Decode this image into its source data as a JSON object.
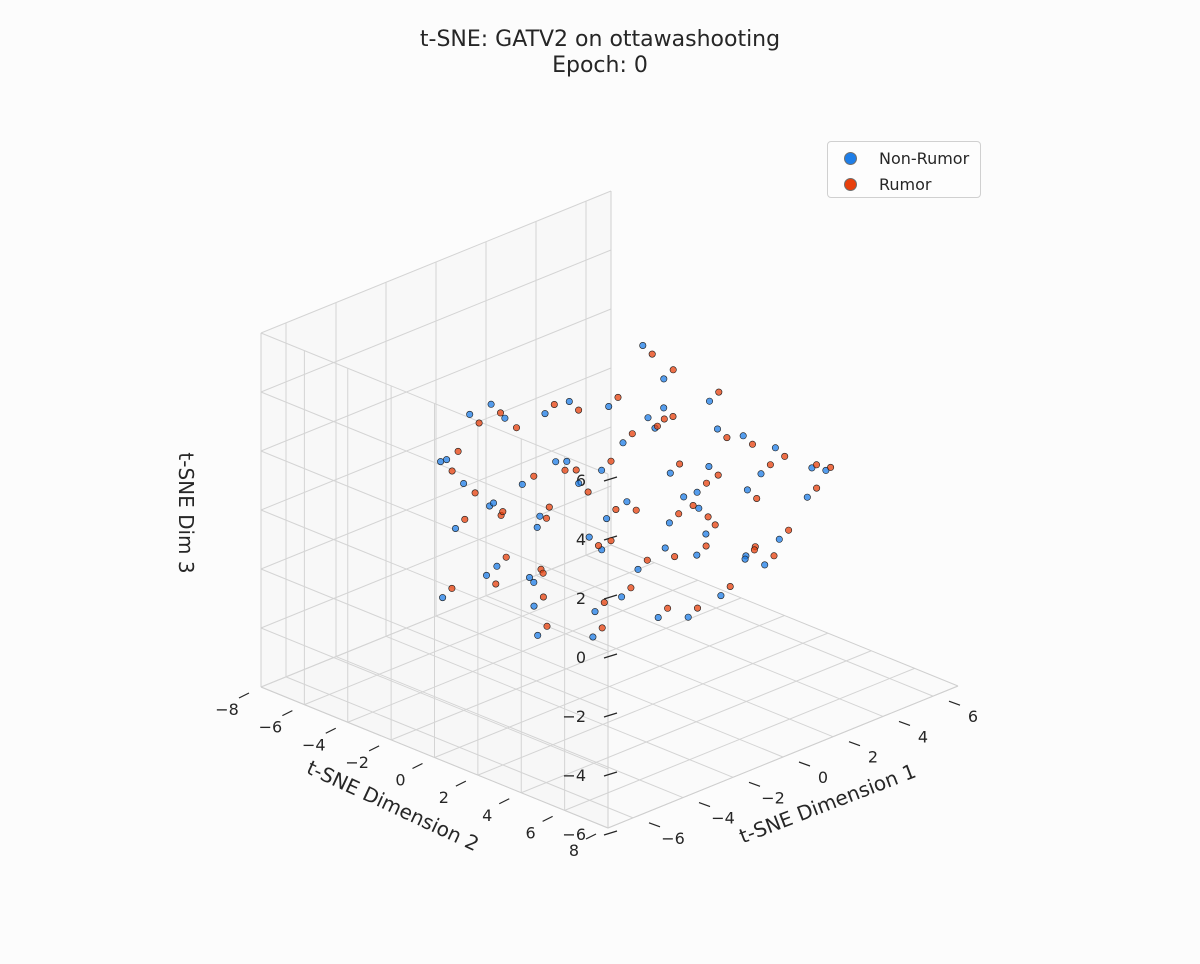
{
  "chart_data": {
    "type": "scatter",
    "projection": "3d",
    "title": "t-SNE: GATV2 on ottawashooting",
    "subtitle": "Epoch: 0",
    "xlabel": "t-SNE Dimension 1",
    "ylabel": "t-SNE Dimension 2",
    "zlabel": "t-SNE Dim 3",
    "xlim": [
      -7,
      7
    ],
    "ylim": [
      -8,
      8
    ],
    "zlim": [
      -6,
      6
    ],
    "x_ticks": [
      -6,
      -4,
      -2,
      0,
      2,
      4,
      6
    ],
    "y_ticks": [
      -8,
      -6,
      -4,
      -2,
      0,
      2,
      4,
      6,
      8
    ],
    "z_ticks": [
      -6,
      -4,
      -2,
      0,
      2,
      4,
      6
    ],
    "x_tick_labels": [
      "−6",
      "−4",
      "−2",
      "0",
      "2",
      "4",
      "6"
    ],
    "y_tick_labels": [
      "−8",
      "−6",
      "−4",
      "−2",
      "0",
      "2",
      "4",
      "6",
      "8"
    ],
    "z_tick_labels": [
      "−6",
      "−4",
      "−2",
      "0",
      "2",
      "4",
      "6"
    ],
    "grid": true,
    "legend_position": "top-right",
    "series": [
      {
        "name": "Non-Rumor",
        "color": "#1e7ee8",
        "points": [
          [
            -3.2,
            -4.1,
            1.5
          ],
          [
            -2.8,
            -3.5,
            0.8
          ],
          [
            -4.0,
            -2.9,
            2.2
          ],
          [
            -1.5,
            -3.8,
            -0.5
          ],
          [
            -3.6,
            -1.2,
            1.1
          ],
          [
            -2.1,
            -2.4,
            3.1
          ],
          [
            -0.8,
            -3.1,
            0.2
          ],
          [
            -4.4,
            -0.6,
            -0.9
          ],
          [
            -1.9,
            -1.5,
            -2.1
          ],
          [
            -3.0,
            -2.0,
            4.0
          ],
          [
            -2.5,
            0.4,
            2.6
          ],
          [
            -1.1,
            -0.7,
            1.8
          ],
          [
            0.3,
            -2.2,
            2.9
          ],
          [
            -3.8,
            0.9,
            -1.7
          ],
          [
            -0.4,
            0.1,
            -1.2
          ],
          [
            0.9,
            -1.4,
            0.6
          ],
          [
            -2.2,
            1.6,
            0.3
          ],
          [
            1.4,
            -0.3,
            -2.6
          ],
          [
            -1.3,
            2.3,
            1.4
          ],
          [
            0.5,
            1.2,
            3.3
          ],
          [
            2.1,
            -1.8,
            1.0
          ],
          [
            -0.2,
            2.8,
            -0.4
          ],
          [
            1.7,
            0.8,
            -0.8
          ],
          [
            2.6,
            -0.5,
            2.4
          ],
          [
            -1.0,
            3.4,
            -2.3
          ],
          [
            0.8,
            2.5,
            0.9
          ],
          [
            2.9,
            1.1,
            -1.5
          ],
          [
            1.2,
            3.2,
            2.0
          ],
          [
            3.3,
            -1.0,
            -0.2
          ],
          [
            2.2,
            2.6,
            -2.9
          ],
          [
            3.8,
            0.6,
            1.6
          ],
          [
            0.1,
            4.0,
            1.2
          ],
          [
            -2.7,
            -0.2,
            -3.4
          ],
          [
            3.0,
            2.9,
            0.5
          ],
          [
            4.2,
            -0.8,
            -1.1
          ],
          [
            1.9,
            4.1,
            -1.0
          ],
          [
            -4.6,
            -1.8,
            0.4
          ],
          [
            -3.4,
            2.5,
            2.8
          ],
          [
            4.5,
            1.8,
            0.2
          ],
          [
            2.4,
            -2.9,
            -2.0
          ],
          [
            -1.6,
            -4.6,
            2.4
          ],
          [
            0.6,
            -3.9,
            -1.6
          ],
          [
            -0.5,
            4.6,
            0.0
          ],
          [
            3.6,
            3.5,
            1.9
          ],
          [
            5.0,
            0.4,
            0.9
          ],
          [
            -2.9,
            3.9,
            -0.8
          ],
          [
            1.0,
            5.1,
            -0.5
          ],
          [
            -5.2,
            0.8,
            0.1
          ],
          [
            3.9,
            -2.4,
            0.7
          ],
          [
            2.8,
            4.6,
            -0.6
          ],
          [
            6.1,
            2.3,
            0.0
          ],
          [
            6.4,
            2.6,
            -0.1
          ],
          [
            -0.9,
            1.0,
            4.1
          ],
          [
            0.2,
            -0.9,
            -3.8
          ],
          [
            1.5,
            1.9,
            -3.6
          ],
          [
            -3.9,
            -3.2,
            -2.6
          ],
          [
            4.3,
            2.2,
            -2.7
          ],
          [
            -1.8,
            -0.9,
            3.6
          ],
          [
            2.0,
            0.2,
            3.8
          ],
          [
            -2.4,
            2.0,
            -2.9
          ],
          [
            0.9,
            0.5,
            5.4
          ],
          [
            -4.8,
            2.2,
            1.7
          ],
          [
            5.3,
            -1.5,
            1.4
          ],
          [
            3.4,
            5.2,
            0.8
          ],
          [
            -0.6,
            -2.8,
            -3.1
          ]
        ]
      },
      {
        "name": "Rumor",
        "color": "#e8400c",
        "points": [
          [
            -3.0,
            -3.8,
            1.2
          ],
          [
            -2.6,
            -3.2,
            0.5
          ],
          [
            -3.8,
            -2.6,
            2.5
          ],
          [
            -1.3,
            -3.5,
            -0.8
          ],
          [
            -3.4,
            -1.0,
            0.8
          ],
          [
            -1.9,
            -2.1,
            2.8
          ],
          [
            -0.6,
            -2.8,
            0.5
          ],
          [
            -4.2,
            -0.4,
            -1.2
          ],
          [
            -1.7,
            -1.2,
            -1.8
          ],
          [
            -2.8,
            -1.8,
            3.7
          ],
          [
            -2.3,
            0.6,
            2.3
          ],
          [
            -0.9,
            -0.5,
            1.5
          ],
          [
            0.5,
            -2.0,
            2.6
          ],
          [
            -3.6,
            1.1,
            -1.4
          ],
          [
            -0.2,
            0.3,
            -0.9
          ],
          [
            1.1,
            -1.2,
            0.9
          ],
          [
            -2.0,
            1.8,
            0.0
          ],
          [
            1.6,
            -0.1,
            -2.3
          ],
          [
            -1.1,
            2.5,
            1.1
          ],
          [
            0.7,
            1.4,
            3.0
          ],
          [
            2.3,
            -1.6,
            1.3
          ],
          [
            0.0,
            3.0,
            -0.7
          ],
          [
            1.9,
            1.0,
            -0.5
          ],
          [
            2.8,
            -0.3,
            2.1
          ],
          [
            -0.8,
            3.6,
            -2.0
          ],
          [
            1.0,
            2.7,
            0.6
          ],
          [
            3.1,
            1.3,
            -1.2
          ],
          [
            1.4,
            3.4,
            1.7
          ],
          [
            3.5,
            -0.8,
            0.1
          ],
          [
            2.4,
            2.8,
            -2.6
          ],
          [
            4.0,
            0.8,
            1.3
          ],
          [
            0.3,
            4.2,
            0.9
          ],
          [
            -2.5,
            0.0,
            -3.1
          ],
          [
            3.2,
            3.1,
            0.2
          ],
          [
            4.4,
            -0.6,
            -0.8
          ],
          [
            2.1,
            4.3,
            -0.7
          ],
          [
            -4.4,
            -1.6,
            0.7
          ],
          [
            -3.2,
            2.7,
            2.5
          ],
          [
            4.7,
            2.0,
            0.5
          ],
          [
            2.6,
            -2.7,
            -1.7
          ],
          [
            -1.4,
            -4.4,
            2.1
          ],
          [
            0.8,
            -3.7,
            -1.3
          ],
          [
            -0.3,
            4.8,
            0.3
          ],
          [
            3.8,
            3.7,
            1.6
          ],
          [
            5.2,
            0.6,
            0.6
          ],
          [
            -2.7,
            4.1,
            -0.5
          ],
          [
            1.2,
            5.3,
            -0.2
          ],
          [
            -5.0,
            1.0,
            0.4
          ],
          [
            4.1,
            -2.2,
            1.0
          ],
          [
            3.0,
            4.8,
            -0.3
          ],
          [
            6.2,
            2.4,
            0.1
          ],
          [
            6.5,
            2.7,
            0.0
          ],
          [
            -0.7,
            1.2,
            4.4
          ],
          [
            0.4,
            -0.7,
            -3.5
          ],
          [
            1.7,
            2.1,
            -3.3
          ],
          [
            -3.7,
            -3.0,
            -2.3
          ],
          [
            4.5,
            2.4,
            -2.4
          ],
          [
            -1.6,
            -0.7,
            3.9
          ],
          [
            2.2,
            0.4,
            4.1
          ],
          [
            -2.2,
            2.2,
            -2.6
          ],
          [
            1.1,
            0.7,
            5.1
          ],
          [
            -4.6,
            2.4,
            2.0
          ],
          [
            5.5,
            -1.3,
            1.7
          ],
          [
            3.6,
            5.4,
            1.1
          ],
          [
            -0.4,
            -2.6,
            -2.8
          ]
        ]
      }
    ]
  }
}
